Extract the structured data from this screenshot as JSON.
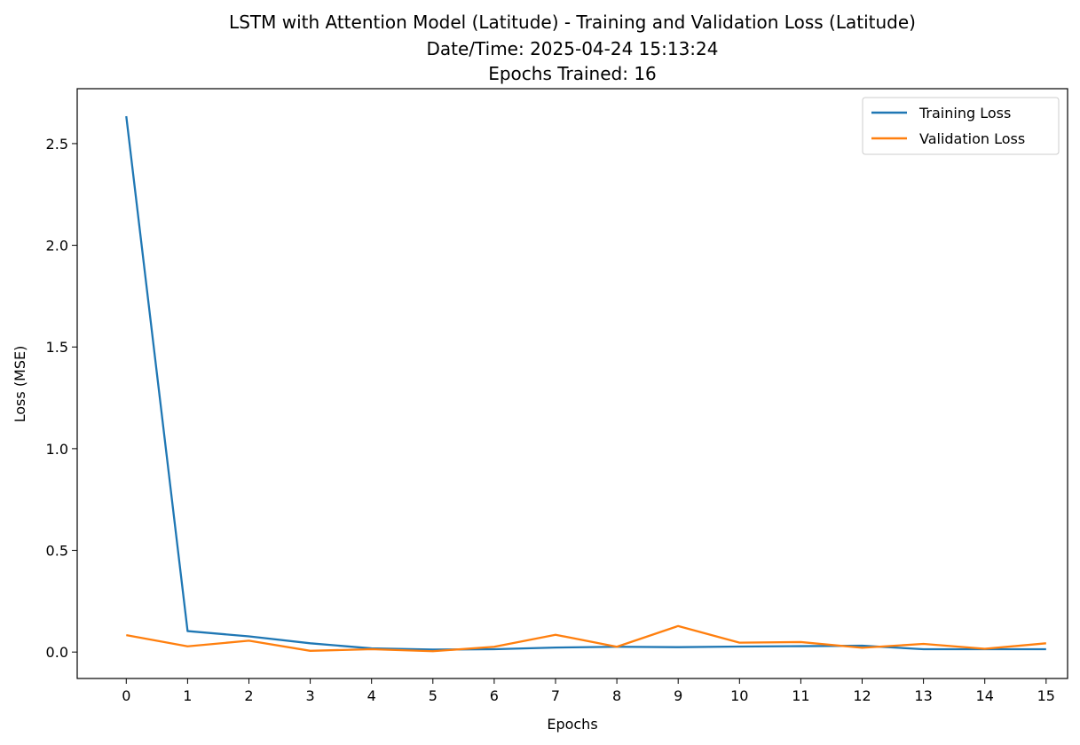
{
  "chart_data": {
    "type": "line",
    "title_lines": [
      "LSTM with Attention Model (Latitude) - Training and Validation Loss (Latitude)",
      "Date/Time: 2025-04-24 15:13:24",
      "Epochs Trained: 16"
    ],
    "xlabel": "Epochs",
    "ylabel": "Loss (MSE)",
    "x": [
      0,
      1,
      2,
      3,
      4,
      5,
      6,
      7,
      8,
      9,
      10,
      11,
      12,
      13,
      14,
      15
    ],
    "xticks": [
      "0",
      "1",
      "2",
      "3",
      "4",
      "5",
      "6",
      "7",
      "8",
      "9",
      "10",
      "11",
      "12",
      "13",
      "14",
      "15"
    ],
    "yticks": [
      "0.0",
      "0.5",
      "1.0",
      "1.5",
      "2.0",
      "2.5"
    ],
    "ytick_values": [
      0.0,
      0.5,
      1.0,
      1.5,
      2.0,
      2.5
    ],
    "xlim": [
      -0.8,
      15.35
    ],
    "ylim": [
      -0.13,
      2.77
    ],
    "grid": false,
    "legend_position": "top-right",
    "series": [
      {
        "name": "Training Loss",
        "color": "#1f77b4",
        "values": [
          2.635,
          0.103,
          0.077,
          0.043,
          0.018,
          0.012,
          0.014,
          0.022,
          0.026,
          0.024,
          0.027,
          0.029,
          0.031,
          0.014,
          0.014,
          0.014
        ]
      },
      {
        "name": "Validation Loss",
        "color": "#ff7f0e",
        "values": [
          0.083,
          0.028,
          0.056,
          0.006,
          0.014,
          0.004,
          0.026,
          0.085,
          0.026,
          0.128,
          0.046,
          0.049,
          0.021,
          0.04,
          0.016,
          0.043
        ]
      }
    ]
  }
}
